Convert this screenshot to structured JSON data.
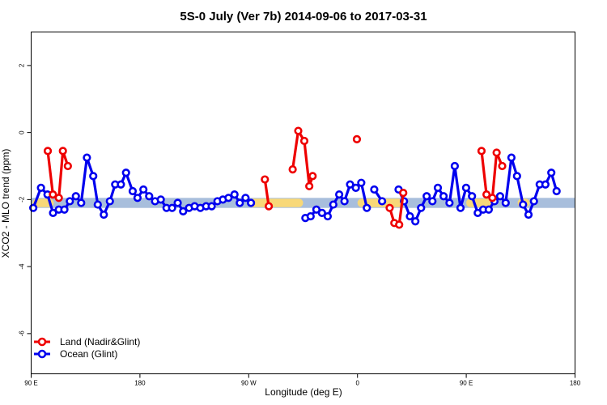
{
  "chart_data": {
    "type": "line",
    "title": "5S-0 July (Ver 7b)   2014-09-06 to 2017-03-31",
    "xlabel": "Longitude (deg E)",
    "ylabel": "XCO2 - MLO trend (ppm)",
    "xlim": [
      90,
      450
    ],
    "ylim": [
      -7.2,
      3.0
    ],
    "x_ticks": [
      {
        "value": 90,
        "label": "90 E"
      },
      {
        "value": 162,
        "label": "180"
      },
      {
        "value": 234,
        "label": "90 W"
      },
      {
        "value": 306,
        "label": "0"
      },
      {
        "value": 378,
        "label": "90 E"
      },
      {
        "value": 450,
        "label": "180"
      }
    ],
    "y_ticks": [
      {
        "value": 2,
        "label": "2"
      },
      {
        "value": 0,
        "label": "0"
      },
      {
        "value": -2,
        "label": "-2"
      },
      {
        "value": -4,
        "label": "-4"
      },
      {
        "value": -6,
        "label": "-6"
      }
    ],
    "grid": false,
    "legend_position": "bottom-left",
    "colors": {
      "land": "#ee0000",
      "ocean": "#0000ee",
      "band_blue": "#a8bedc",
      "band_yellow": "#f8d878"
    },
    "band": {
      "center": -2.1,
      "half_width": 0.15
    },
    "band_yellow_segments": [
      [
        91,
        105
      ],
      [
        234,
        270
      ],
      [
        306,
        336
      ],
      [
        378,
        395
      ],
      [
        412,
        420
      ]
    ],
    "series": [
      {
        "name": "Land (Nadir&Glint)",
        "color": "#ee0000",
        "segments": [
          [
            [
              101.0,
              -0.55
            ],
            [
              104.4,
              -1.85
            ],
            [
              108.3,
              -1.95
            ],
            [
              111.0,
              -0.55
            ],
            [
              114.3,
              -1.0
            ]
          ],
          [
            [
              244.7,
              -1.4
            ],
            [
              247.3,
              -2.2
            ]
          ],
          [
            [
              263.1,
              -1.1
            ],
            [
              266.8,
              0.05
            ],
            [
              270.8,
              -0.25
            ],
            [
              274.1,
              -1.6
            ],
            [
              276.3,
              -1.3
            ]
          ],
          [
            [
              305.6,
              -0.2
            ]
          ],
          [
            [
              327.3,
              -2.25
            ],
            [
              330.4,
              -2.7
            ],
            [
              333.6,
              -2.75
            ],
            [
              336.3,
              -1.8
            ]
          ],
          [
            [
              388.1,
              -0.55
            ],
            [
              391.4,
              -1.85
            ],
            [
              395.3,
              -1.95
            ],
            [
              398.1,
              -0.6
            ],
            [
              401.8,
              -1.0
            ]
          ]
        ]
      },
      {
        "name": "Ocean (Glint)",
        "color": "#0000ee",
        "segments": [
          [
            [
              91.4,
              -2.25
            ],
            [
              96.5,
              -1.65
            ],
            [
              100.8,
              -1.85
            ],
            [
              104.5,
              -2.4
            ],
            [
              108.3,
              -2.3
            ],
            [
              112.0,
              -2.3
            ],
            [
              115.6,
              -2.05
            ],
            [
              119.6,
              -1.9
            ],
            [
              123.1,
              -2.1
            ],
            [
              126.9,
              -0.75
            ],
            [
              131.1,
              -1.3
            ],
            [
              134.1,
              -2.15
            ],
            [
              138.1,
              -2.45
            ],
            [
              142.1,
              -2.05
            ],
            [
              145.6,
              -1.55
            ],
            [
              149.4,
              -1.55
            ],
            [
              152.8,
              -1.2
            ],
            [
              157.2,
              -1.75
            ],
            [
              160.4,
              -1.95
            ],
            [
              164.3,
              -1.7
            ],
            [
              168.1,
              -1.9
            ],
            [
              172.0,
              -2.05
            ],
            [
              175.8,
              -2.0
            ],
            [
              179.6,
              -2.25
            ],
            [
              183.3,
              -2.25
            ],
            [
              187.0,
              -2.1
            ],
            [
              190.6,
              -2.35
            ],
            [
              194.5,
              -2.25
            ],
            [
              198.2,
              -2.2
            ],
            [
              202.0,
              -2.25
            ],
            [
              205.8,
              -2.2
            ],
            [
              209.5,
              -2.2
            ],
            [
              213.3,
              -2.05
            ],
            [
              216.9,
              -2.0
            ],
            [
              220.6,
              -1.95
            ],
            [
              224.6,
              -1.85
            ],
            [
              228.1,
              -2.1
            ],
            [
              231.9,
              -1.95
            ],
            [
              235.5,
              -2.1
            ]
          ],
          [
            [
              271.5,
              -2.55
            ],
            [
              275.0,
              -2.5
            ],
            [
              278.8,
              -2.3
            ],
            [
              282.5,
              -2.4
            ],
            [
              286.3,
              -2.5
            ],
            [
              290.0,
              -2.15
            ],
            [
              293.9,
              -1.85
            ],
            [
              297.4,
              -2.05
            ],
            [
              301.1,
              -1.55
            ],
            [
              304.9,
              -1.65
            ],
            [
              308.5,
              -1.5
            ],
            [
              312.2,
              -2.25
            ]
          ],
          [
            [
              317.1,
              -1.7
            ],
            [
              322.3,
              -2.05
            ]
          ],
          [
            [
              333.2,
              -1.7
            ],
            [
              336.8,
              -2.05
            ],
            [
              340.7,
              -2.5
            ],
            [
              344.3,
              -2.65
            ],
            [
              348.1,
              -2.25
            ],
            [
              351.8,
              -1.9
            ],
            [
              355.6,
              -2.05
            ],
            [
              359.2,
              -1.65
            ],
            [
              363.0,
              -1.9
            ],
            [
              366.9,
              -2.1
            ],
            [
              370.4,
              -1.0
            ],
            [
              374.2,
              -2.25
            ],
            [
              377.9,
              -1.65
            ],
            [
              381.8,
              -1.9
            ],
            [
              385.6,
              -2.4
            ],
            [
              389.2,
              -2.3
            ],
            [
              392.9,
              -2.3
            ],
            [
              396.7,
              -2.05
            ],
            [
              400.4,
              -1.9
            ],
            [
              404.1,
              -2.1
            ],
            [
              407.9,
              -0.75
            ],
            [
              411.6,
              -1.3
            ],
            [
              415.6,
              -2.15
            ],
            [
              419.2,
              -2.45
            ],
            [
              422.8,
              -2.05
            ],
            [
              426.6,
              -1.55
            ],
            [
              430.4,
              -1.55
            ],
            [
              434.3,
              -1.2
            ],
            [
              437.8,
              -1.75
            ]
          ]
        ]
      }
    ]
  }
}
